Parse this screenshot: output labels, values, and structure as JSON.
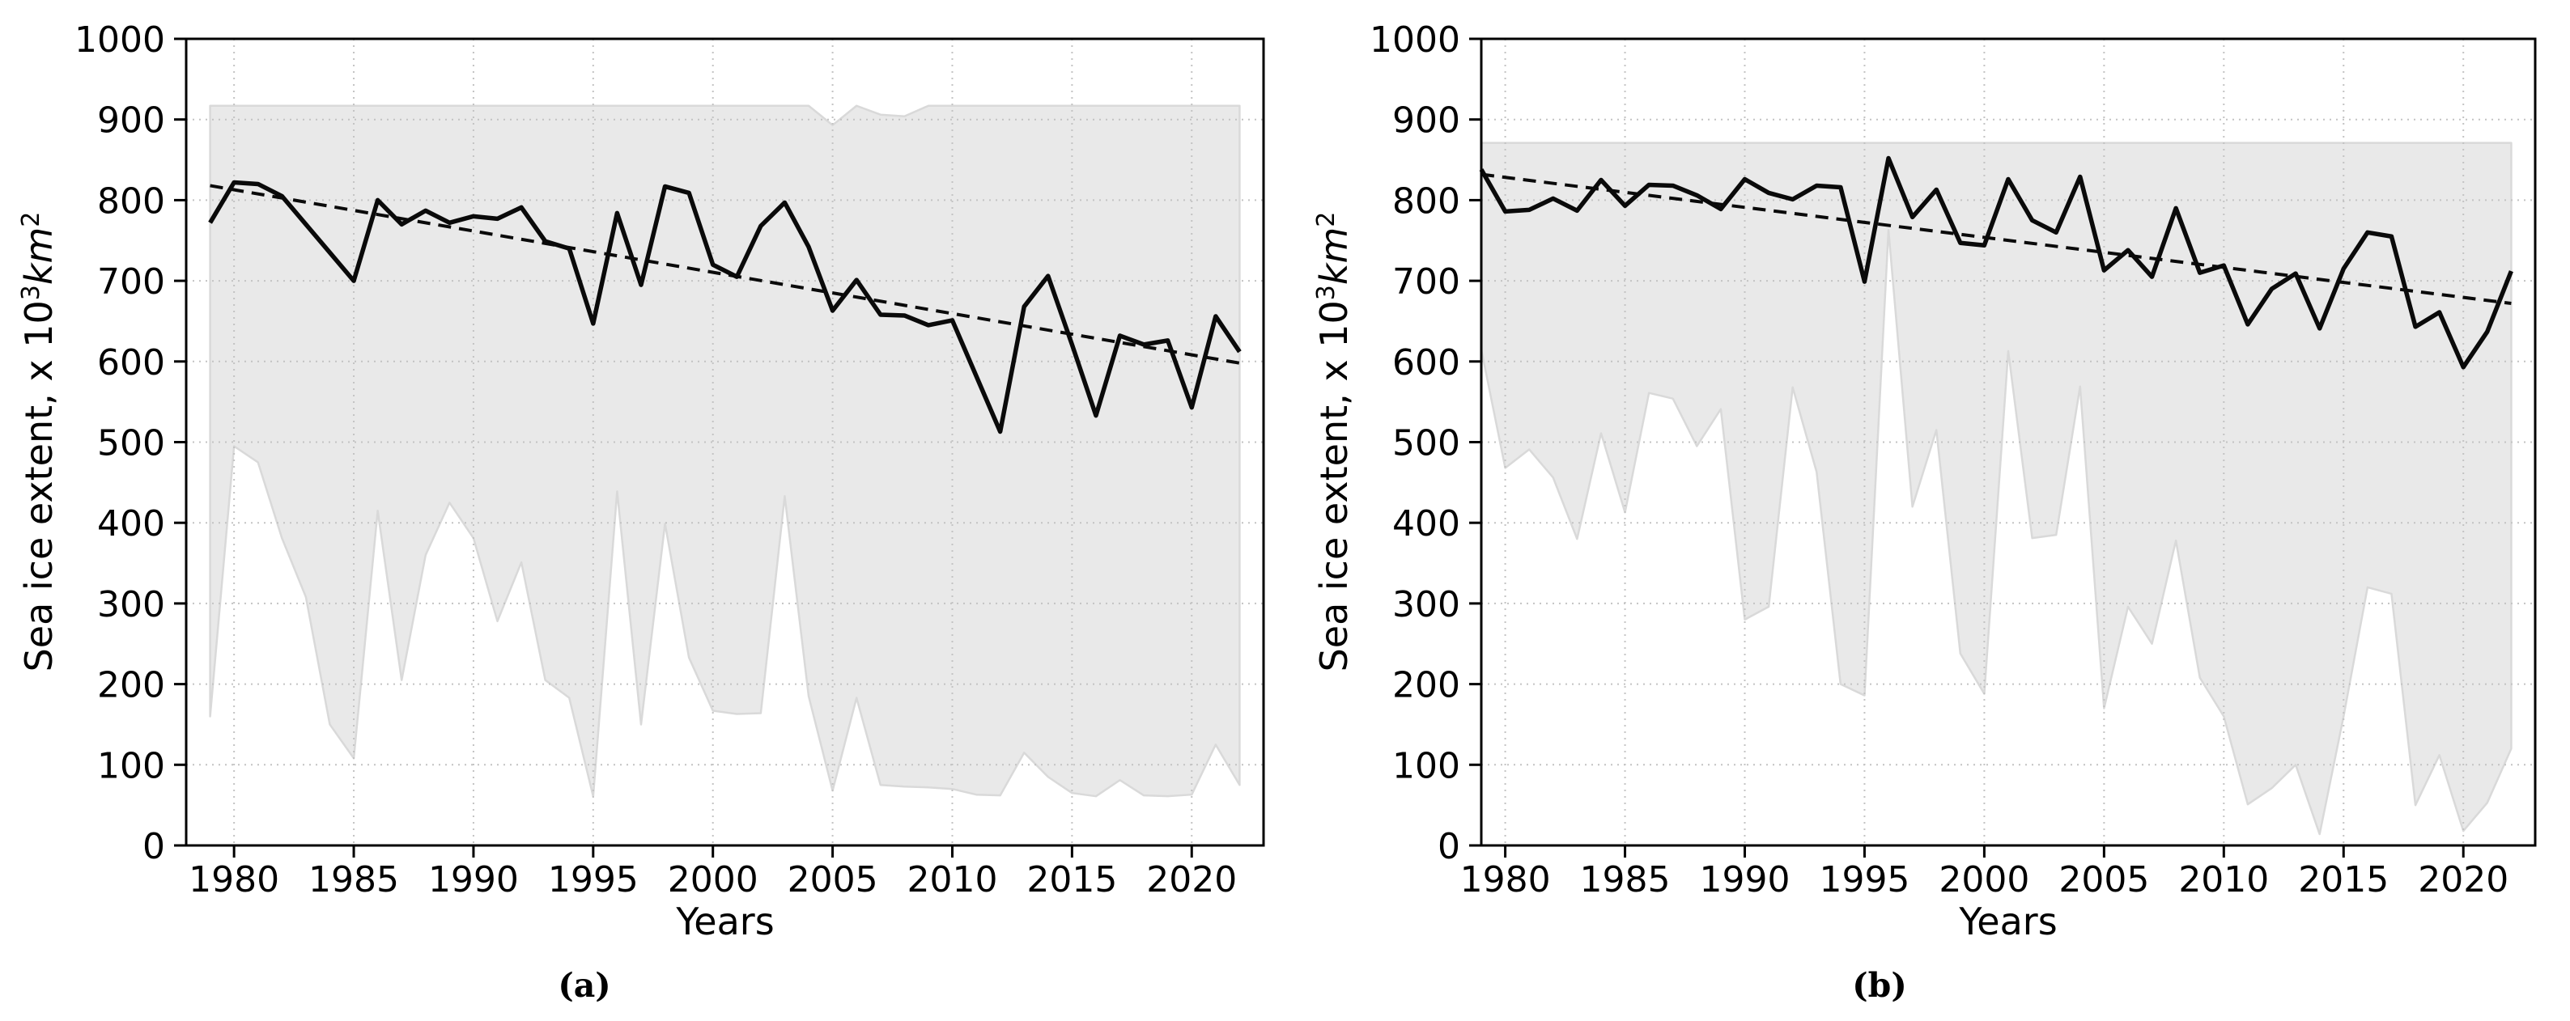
{
  "figure": {
    "background": "#ffffff",
    "band_color": "#e9e9e9",
    "band_edge_color": "#d9d9d9",
    "grid_color": "#c3c3c3",
    "line_color": "#0a0a0a",
    "charts": [
      {
        "id": "a",
        "caption": "(a)",
        "xlabel": "Years",
        "ylabel": {
          "text": "Sea ice extent, x 10",
          "exp": "3",
          "unit": "km",
          "unit_exp": "2"
        }
      },
      {
        "id": "b",
        "caption": "(b)",
        "xlabel": "Years",
        "ylabel": {
          "text": "Sea ice extent, x 10",
          "exp": "3",
          "unit": "km",
          "unit_exp": "2"
        }
      }
    ]
  },
  "chart_data": [
    {
      "type": "line",
      "id": "a",
      "title": "",
      "xlabel": "Years",
      "ylabel": "Sea ice extent, x 10^3 km^2",
      "xlim": [
        1978,
        2023
      ],
      "ylim": [
        0,
        1000
      ],
      "x_ticks": [
        1980,
        1985,
        1990,
        1995,
        2000,
        2005,
        2010,
        2015,
        2020
      ],
      "y_ticks": [
        0,
        100,
        200,
        300,
        400,
        500,
        600,
        700,
        800,
        900,
        1000
      ],
      "grid": true,
      "legend": "none",
      "years": [
        1979,
        1980,
        1981,
        1982,
        1983,
        1984,
        1985,
        1986,
        1987,
        1988,
        1989,
        1990,
        1991,
        1992,
        1993,
        1994,
        1995,
        1996,
        1997,
        1998,
        1999,
        2000,
        2001,
        2002,
        2003,
        2004,
        2005,
        2006,
        2007,
        2008,
        2009,
        2010,
        2011,
        2012,
        2013,
        2014,
        2015,
        2016,
        2017,
        2018,
        2019,
        2020,
        2021,
        2022
      ],
      "series": [
        {
          "name": "annual-sea-ice-extent",
          "style": "solid",
          "values": [
            772,
            822,
            820,
            805,
            770,
            735,
            700,
            800,
            770,
            787,
            772,
            780,
            777,
            791,
            749,
            740,
            647,
            784,
            695,
            817,
            809,
            720,
            705,
            768,
            797,
            742,
            663,
            701,
            658,
            657,
            645,
            651,
            582,
            513,
            668,
            706,
            621,
            533,
            632,
            621,
            626,
            543,
            656,
            612
          ]
        },
        {
          "name": "linear-trend",
          "style": "dashed",
          "x": [
            1979,
            2022
          ],
          "values": [
            818,
            598
          ]
        }
      ],
      "band": {
        "name": "min-max-range",
        "top": [
          917,
          917,
          917,
          917,
          917,
          917,
          917,
          917,
          917,
          917,
          917,
          917,
          917,
          917,
          917,
          917,
          917,
          917,
          917,
          917,
          917,
          917,
          917,
          917,
          917,
          917,
          893,
          917,
          906,
          904,
          917,
          917,
          917,
          917,
          917,
          917,
          917,
          917,
          917,
          917,
          917,
          917,
          917,
          917
        ],
        "bottom": [
          160,
          495,
          475,
          381,
          308,
          150,
          108,
          415,
          205,
          360,
          425,
          381,
          278,
          351,
          205,
          183,
          61,
          439,
          150,
          399,
          233,
          167,
          163,
          164,
          433,
          185,
          68,
          183,
          75,
          73,
          72,
          70,
          63,
          62,
          115,
          85,
          65,
          61,
          81,
          62,
          61,
          63,
          125,
          75
        ]
      }
    },
    {
      "type": "line",
      "id": "b",
      "title": "",
      "xlabel": "Years",
      "ylabel": "Sea ice extent, x 10^3 km^2",
      "xlim": [
        1979,
        2023
      ],
      "ylim": [
        0,
        1000
      ],
      "x_ticks": [
        1980,
        1985,
        1990,
        1995,
        2000,
        2005,
        2010,
        2015,
        2020
      ],
      "y_ticks": [
        0,
        100,
        200,
        300,
        400,
        500,
        600,
        700,
        800,
        900,
        1000
      ],
      "grid": true,
      "legend": "none",
      "years": [
        1979,
        1980,
        1981,
        1982,
        1983,
        1984,
        1985,
        1986,
        1987,
        1988,
        1989,
        1990,
        1991,
        1992,
        1993,
        1994,
        1995,
        1996,
        1997,
        1998,
        1999,
        2000,
        2001,
        2002,
        2003,
        2004,
        2005,
        2006,
        2007,
        2008,
        2009,
        2010,
        2011,
        2012,
        2013,
        2014,
        2015,
        2016,
        2017,
        2018,
        2019,
        2020,
        2021,
        2022
      ],
      "series": [
        {
          "name": "annual-sea-ice-extent",
          "style": "solid",
          "values": [
            838,
            786,
            788,
            802,
            787,
            825,
            793,
            819,
            818,
            806,
            789,
            826,
            809,
            801,
            818,
            816,
            699,
            852,
            779,
            813,
            747,
            744,
            826,
            775,
            760,
            829,
            713,
            738,
            705,
            790,
            710,
            719,
            646,
            690,
            709,
            641,
            715,
            760,
            755,
            643,
            661,
            593,
            637,
            712
          ]
        },
        {
          "name": "linear-trend",
          "style": "dashed",
          "x": [
            1979,
            2022
          ],
          "values": [
            832,
            672
          ]
        }
      ],
      "band": {
        "name": "min-max-range",
        "top": [
          871,
          871,
          871,
          871,
          871,
          871,
          871,
          871,
          871,
          871,
          871,
          871,
          871,
          871,
          871,
          871,
          871,
          871,
          871,
          871,
          871,
          871,
          871,
          871,
          871,
          871,
          871,
          871,
          871,
          871,
          871,
          871,
          871,
          871,
          871,
          871,
          871,
          871,
          871,
          871,
          871,
          871,
          871,
          871
        ],
        "bottom": [
          615,
          468,
          491,
          456,
          380,
          511,
          413,
          561,
          554,
          495,
          541,
          280,
          296,
          568,
          463,
          200,
          186,
          763,
          420,
          515,
          238,
          188,
          613,
          381,
          385,
          569,
          170,
          296,
          250,
          378,
          208,
          160,
          51,
          71,
          100,
          14,
          160,
          320,
          312,
          50,
          112,
          18,
          53,
          120
        ]
      }
    }
  ]
}
